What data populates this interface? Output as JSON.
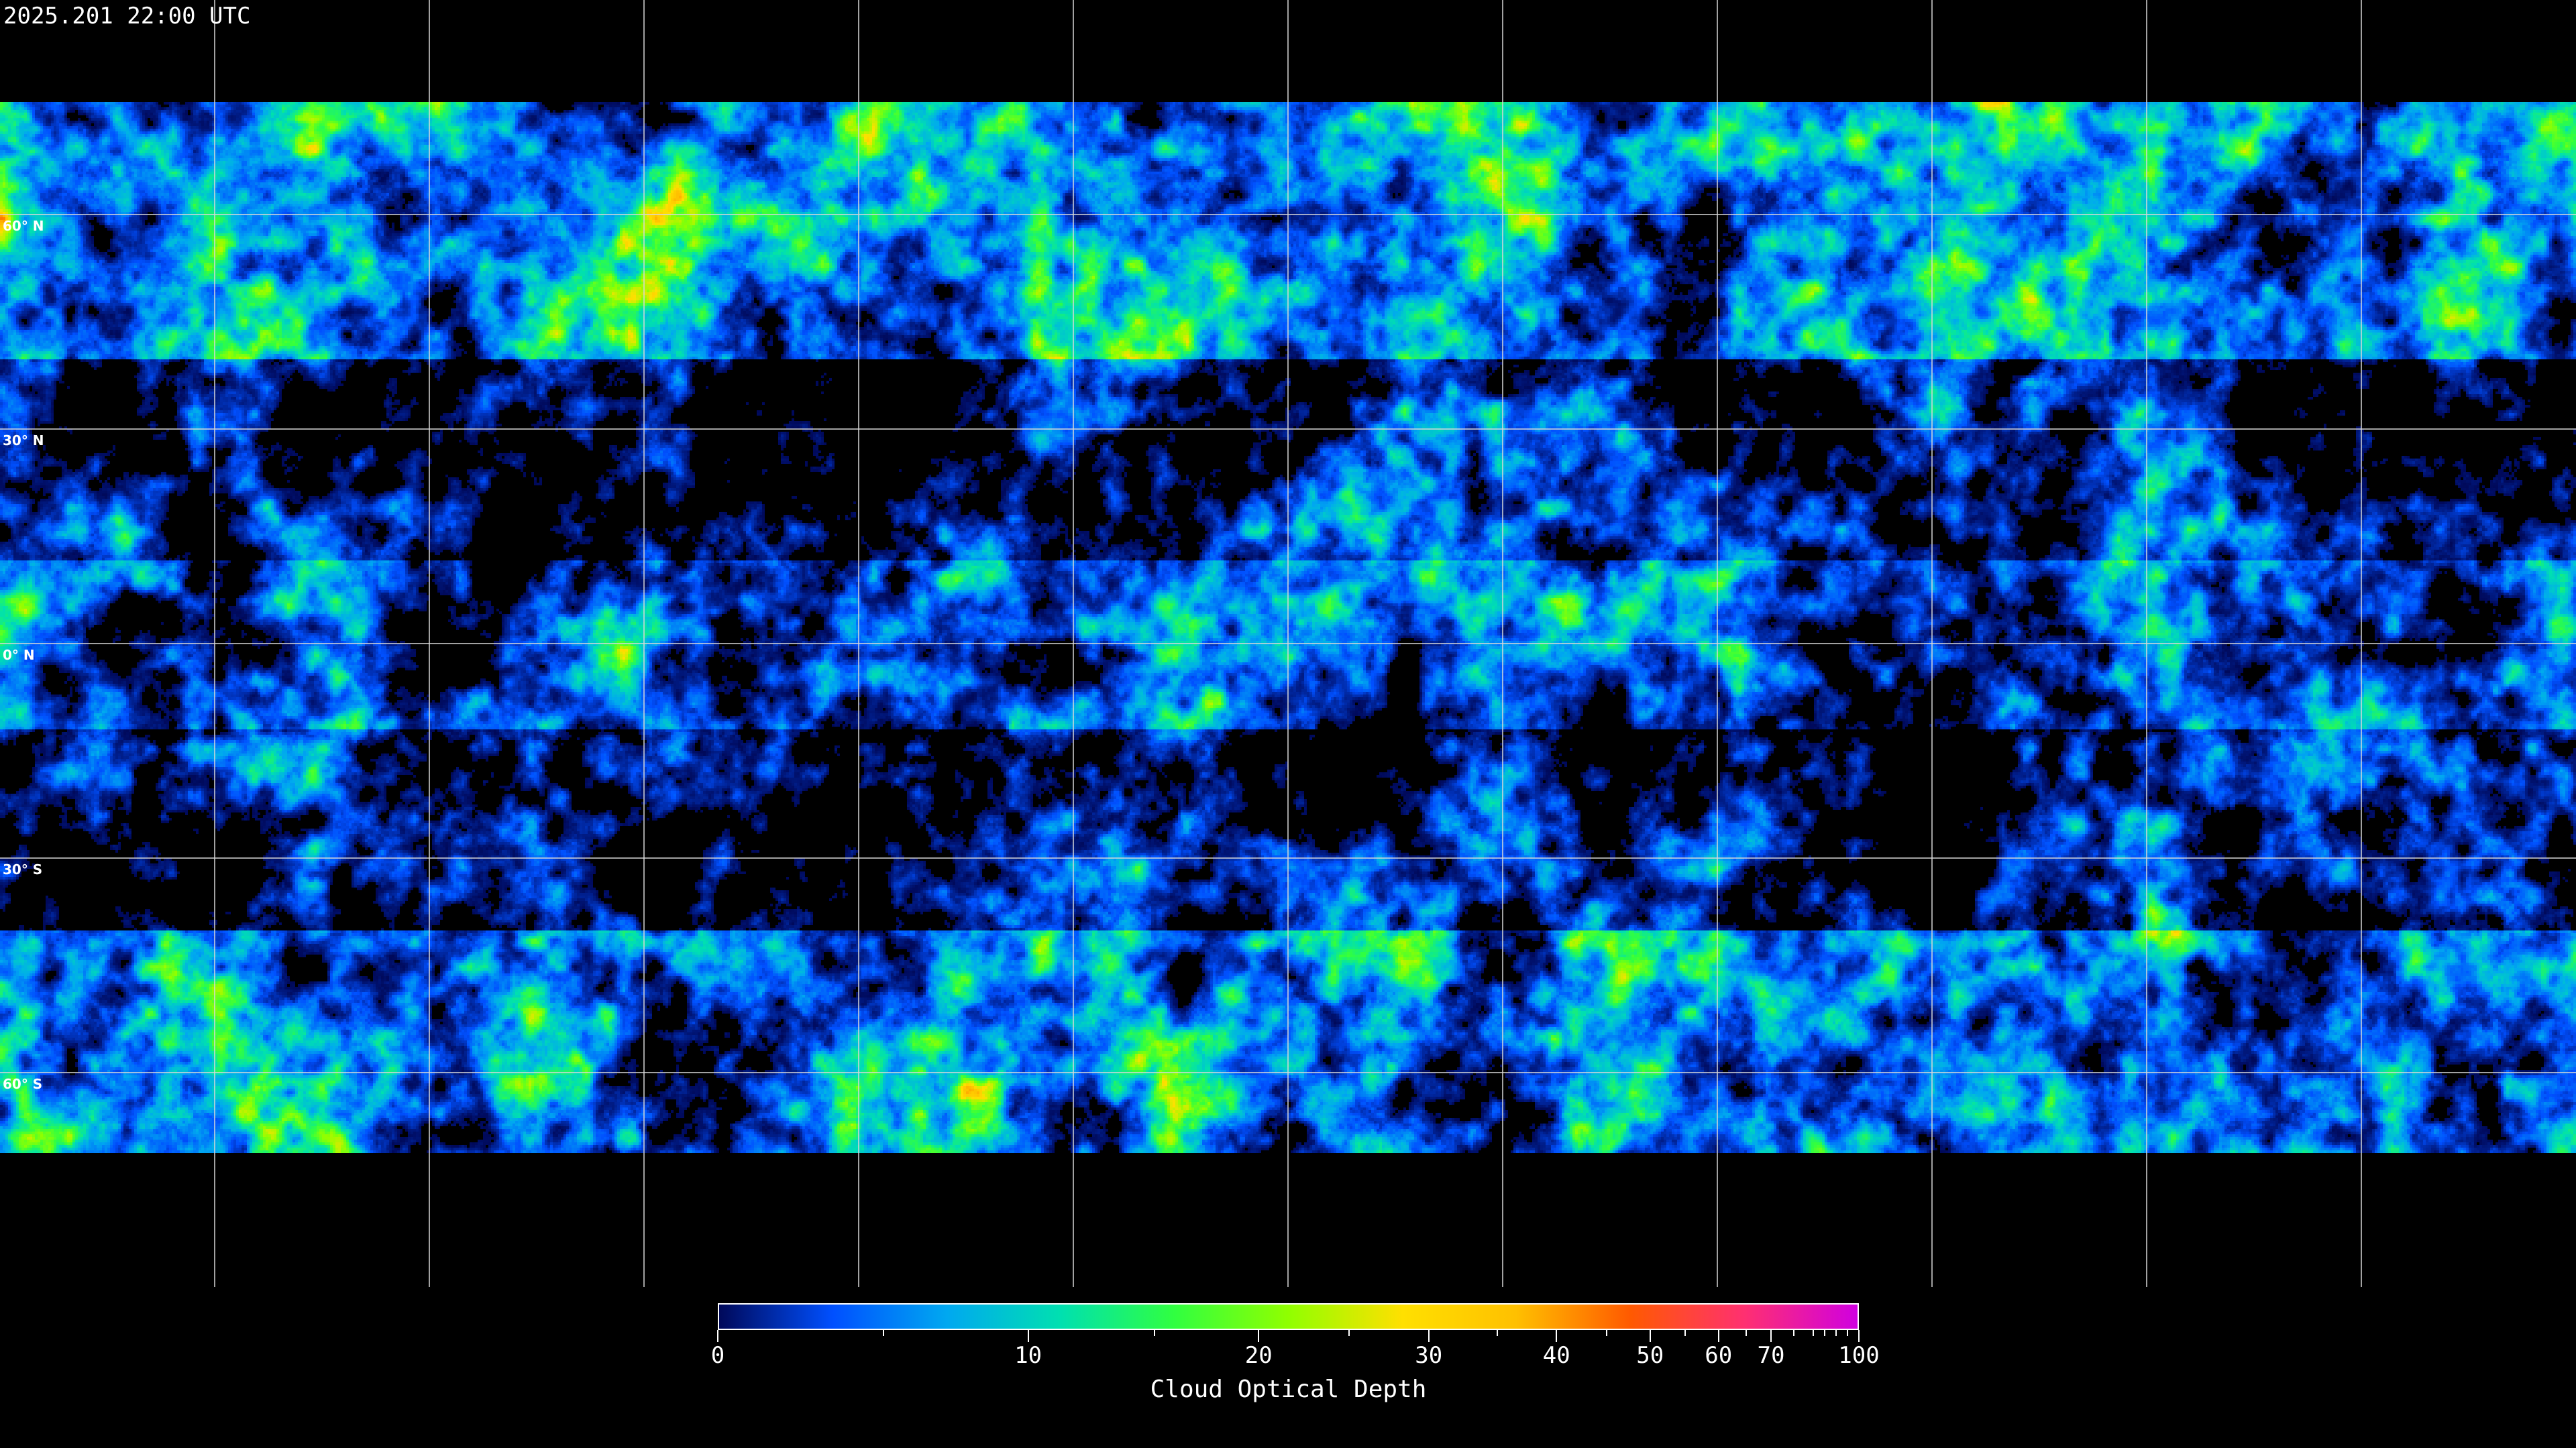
{
  "title": "2025.201 22:00 UTC",
  "map": {
    "projection": "equirectangular",
    "grid_lon_step_deg": 30,
    "lat_labels": [
      "60° N",
      "30° N",
      "0° N",
      "30° S",
      "60° S"
    ],
    "lat_values": [
      60,
      30,
      0,
      -30,
      -60
    ]
  },
  "colorbar": {
    "label": "Cloud Optical Depth",
    "range": [
      0,
      100
    ],
    "major_ticks": [
      "0",
      "10",
      "20",
      "30",
      "40",
      "50",
      "60",
      "70",
      "100"
    ],
    "minor_ticks": [
      5,
      15,
      25,
      35,
      45,
      55,
      65,
      75,
      80,
      85,
      90,
      95
    ],
    "colormap": [
      "#00095a",
      "#0050ff",
      "#00a8f0",
      "#00e0b0",
      "#30ff40",
      "#90ff00",
      "#ffe000",
      "#ffc000",
      "#ff5a00",
      "#ff3070",
      "#d000e0"
    ]
  }
}
